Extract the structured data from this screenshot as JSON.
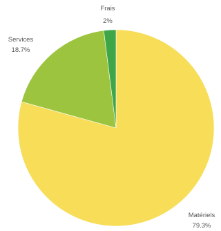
{
  "chart_data": {
    "type": "pie",
    "categories": [
      "Matériels",
      "Services",
      "Frais"
    ],
    "values": [
      79.3,
      18.7,
      2
    ],
    "value_labels": [
      "79.3%",
      "18.7%",
      "2%"
    ],
    "colors": [
      "#f7dd58",
      "#9cc43e",
      "#3fa648"
    ],
    "start": "12 o'clock",
    "direction": "clockwise",
    "legend": "none"
  }
}
